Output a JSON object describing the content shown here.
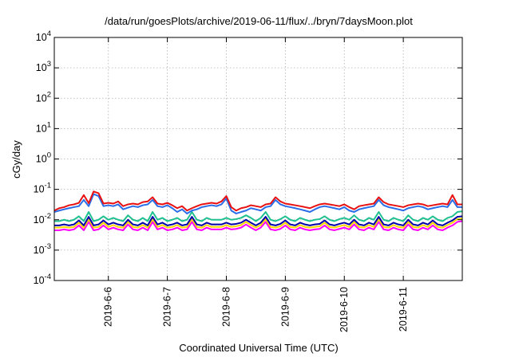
{
  "chart_data": {
    "type": "line",
    "title": "/data/run/goesPlots/archive/2019-06-11/flux/../bryn/7daysMoon.plot",
    "xlabel": "Coordinated Universal Time (UTC)",
    "ylabel": "cGy/day",
    "yscale": "log",
    "ylim": [
      0.0001,
      10000
    ],
    "xlim": [
      "2019-06-05T02:00",
      "2019-06-12T00:00"
    ],
    "grid": true,
    "legend": "none",
    "x_ticks": [
      {
        "label": "2019-6-6",
        "at": "2019-06-06T00:00"
      },
      {
        "label": "2019-6-7",
        "at": "2019-06-07T00:00"
      },
      {
        "label": "2019-6-8",
        "at": "2019-06-08T00:00"
      },
      {
        "label": "2019-6-9",
        "at": "2019-06-09T00:00"
      },
      {
        "label": "2019-6-10",
        "at": "2019-06-10T00:00"
      },
      {
        "label": "2019-6-11",
        "at": "2019-06-11T00:00"
      }
    ],
    "y_ticks": [
      {
        "base": "10",
        "exp": "-4"
      },
      {
        "base": "10",
        "exp": "-3"
      },
      {
        "base": "10",
        "exp": "-2"
      },
      {
        "base": "10",
        "exp": "-1"
      },
      {
        "base": "10",
        "exp": "0"
      },
      {
        "base": "10",
        "exp": "1"
      },
      {
        "base": "10",
        "exp": "2"
      },
      {
        "base": "10",
        "exp": "3"
      },
      {
        "base": "10",
        "exp": "4"
      }
    ],
    "x": [
      "2019-06-05T02:00",
      "2019-06-05T04:00",
      "2019-06-05T06:00",
      "2019-06-05T08:00",
      "2019-06-05T10:00",
      "2019-06-05T12:00",
      "2019-06-05T14:00",
      "2019-06-05T16:00",
      "2019-06-05T18:00",
      "2019-06-05T20:00",
      "2019-06-05T22:00",
      "2019-06-06T00:00",
      "2019-06-06T02:00",
      "2019-06-06T04:00",
      "2019-06-06T06:00",
      "2019-06-06T08:00",
      "2019-06-06T10:00",
      "2019-06-06T12:00",
      "2019-06-06T14:00",
      "2019-06-06T16:00",
      "2019-06-06T18:00",
      "2019-06-06T20:00",
      "2019-06-06T22:00",
      "2019-06-07T00:00",
      "2019-06-07T02:00",
      "2019-06-07T04:00",
      "2019-06-07T06:00",
      "2019-06-07T08:00",
      "2019-06-07T10:00",
      "2019-06-07T12:00",
      "2019-06-07T14:00",
      "2019-06-07T16:00",
      "2019-06-07T18:00",
      "2019-06-07T20:00",
      "2019-06-07T22:00",
      "2019-06-08T00:00",
      "2019-06-08T02:00",
      "2019-06-08T04:00",
      "2019-06-08T06:00",
      "2019-06-08T08:00",
      "2019-06-08T10:00",
      "2019-06-08T12:00",
      "2019-06-08T14:00",
      "2019-06-08T16:00",
      "2019-06-08T18:00",
      "2019-06-08T20:00",
      "2019-06-08T22:00",
      "2019-06-09T00:00",
      "2019-06-09T02:00",
      "2019-06-09T04:00",
      "2019-06-09T06:00",
      "2019-06-09T08:00",
      "2019-06-09T10:00",
      "2019-06-09T12:00",
      "2019-06-09T14:00",
      "2019-06-09T16:00",
      "2019-06-09T18:00",
      "2019-06-09T20:00",
      "2019-06-09T22:00",
      "2019-06-10T00:00",
      "2019-06-10T02:00",
      "2019-06-10T04:00",
      "2019-06-10T06:00",
      "2019-06-10T08:00",
      "2019-06-10T10:00",
      "2019-06-10T12:00",
      "2019-06-10T14:00",
      "2019-06-10T16:00",
      "2019-06-10T18:00",
      "2019-06-10T20:00",
      "2019-06-10T22:00",
      "2019-06-11T00:00",
      "2019-06-11T02:00",
      "2019-06-11T04:00",
      "2019-06-11T06:00",
      "2019-06-11T08:00",
      "2019-06-11T10:00",
      "2019-06-11T12:00",
      "2019-06-11T14:00",
      "2019-06-11T16:00",
      "2019-06-11T18:00",
      "2019-06-11T20:00",
      "2019-06-11T22:00",
      "2019-06-12T00:00"
    ],
    "series": [
      {
        "color": "#ff00ff",
        "values": [
          0.0045,
          0.0045,
          0.0048,
          0.0045,
          0.0048,
          0.0065,
          0.0045,
          0.0085,
          0.0045,
          0.0048,
          0.0065,
          0.0048,
          0.0055,
          0.0048,
          0.0045,
          0.007,
          0.0048,
          0.0045,
          0.0055,
          0.0045,
          0.0085,
          0.0048,
          0.0055,
          0.0045,
          0.0048,
          0.0055,
          0.0045,
          0.0048,
          0.0085,
          0.0048,
          0.0045,
          0.0055,
          0.0048,
          0.0048,
          0.0048,
          0.0055,
          0.0048,
          0.005,
          0.0055,
          0.007,
          0.0055,
          0.0045,
          0.0055,
          0.0085,
          0.0048,
          0.0045,
          0.005,
          0.0065,
          0.0048,
          0.0045,
          0.0055,
          0.0048,
          0.0045,
          0.0048,
          0.005,
          0.0065,
          0.0048,
          0.0045,
          0.005,
          0.0055,
          0.0048,
          0.007,
          0.0048,
          0.0045,
          0.0055,
          0.0048,
          0.0085,
          0.0048,
          0.0045,
          0.0055,
          0.0048,
          0.0045,
          0.007,
          0.0048,
          0.0045,
          0.0055,
          0.0048,
          0.0065,
          0.0048,
          0.0045,
          0.0055,
          0.0065,
          0.0085,
          0.009
        ]
      },
      {
        "color": "#ffd700",
        "values": [
          0.0055,
          0.0055,
          0.0058,
          0.0055,
          0.0058,
          0.008,
          0.0055,
          0.0105,
          0.0055,
          0.0058,
          0.008,
          0.0058,
          0.0067,
          0.0058,
          0.0055,
          0.0085,
          0.0058,
          0.0055,
          0.0067,
          0.0055,
          0.0105,
          0.0058,
          0.0067,
          0.0055,
          0.0058,
          0.0067,
          0.0055,
          0.0058,
          0.0105,
          0.0058,
          0.0055,
          0.0067,
          0.0058,
          0.0058,
          0.0058,
          0.0067,
          0.0058,
          0.0061,
          0.0067,
          0.0085,
          0.0067,
          0.0055,
          0.0067,
          0.0105,
          0.0058,
          0.0055,
          0.0061,
          0.008,
          0.0058,
          0.0055,
          0.0067,
          0.0058,
          0.0055,
          0.0058,
          0.0061,
          0.008,
          0.0058,
          0.0055,
          0.0061,
          0.0067,
          0.0058,
          0.0085,
          0.0058,
          0.0055,
          0.0067,
          0.0058,
          0.0105,
          0.0058,
          0.0055,
          0.0067,
          0.0058,
          0.0055,
          0.0085,
          0.0058,
          0.0055,
          0.0067,
          0.0058,
          0.008,
          0.0058,
          0.0055,
          0.0067,
          0.008,
          0.0105,
          0.011
        ]
      },
      {
        "color": "#0000aa",
        "values": [
          0.0065,
          0.0065,
          0.007,
          0.0065,
          0.007,
          0.0095,
          0.0065,
          0.0125,
          0.0065,
          0.007,
          0.0095,
          0.007,
          0.008,
          0.007,
          0.0065,
          0.01,
          0.007,
          0.0065,
          0.008,
          0.0065,
          0.0125,
          0.007,
          0.008,
          0.0065,
          0.007,
          0.008,
          0.0065,
          0.007,
          0.0125,
          0.007,
          0.0065,
          0.008,
          0.007,
          0.007,
          0.007,
          0.008,
          0.007,
          0.0073,
          0.008,
          0.01,
          0.008,
          0.0065,
          0.008,
          0.0125,
          0.007,
          0.0065,
          0.0073,
          0.0095,
          0.007,
          0.0065,
          0.008,
          0.007,
          0.0065,
          0.007,
          0.0073,
          0.0095,
          0.007,
          0.0065,
          0.0073,
          0.008,
          0.007,
          0.01,
          0.007,
          0.0065,
          0.008,
          0.007,
          0.0125,
          0.007,
          0.0065,
          0.008,
          0.007,
          0.0065,
          0.01,
          0.007,
          0.0065,
          0.008,
          0.007,
          0.0095,
          0.007,
          0.0065,
          0.008,
          0.0095,
          0.0125,
          0.013
        ]
      },
      {
        "color": "#20c090",
        "values": [
          0.009,
          0.009,
          0.01,
          0.009,
          0.01,
          0.013,
          0.009,
          0.018,
          0.009,
          0.01,
          0.013,
          0.01,
          0.0115,
          0.01,
          0.009,
          0.014,
          0.01,
          0.009,
          0.0115,
          0.009,
          0.018,
          0.01,
          0.0115,
          0.009,
          0.01,
          0.0115,
          0.009,
          0.01,
          0.018,
          0.01,
          0.009,
          0.0115,
          0.01,
          0.01,
          0.01,
          0.0115,
          0.01,
          0.0105,
          0.0115,
          0.014,
          0.0115,
          0.009,
          0.0115,
          0.018,
          0.01,
          0.009,
          0.0105,
          0.013,
          0.01,
          0.009,
          0.0115,
          0.01,
          0.009,
          0.01,
          0.0105,
          0.013,
          0.01,
          0.009,
          0.0105,
          0.0115,
          0.01,
          0.014,
          0.01,
          0.009,
          0.0115,
          0.01,
          0.018,
          0.01,
          0.009,
          0.0115,
          0.01,
          0.009,
          0.014,
          0.01,
          0.009,
          0.0115,
          0.01,
          0.013,
          0.01,
          0.009,
          0.0115,
          0.013,
          0.018,
          0.019
        ]
      },
      {
        "color": "#2a6de8",
        "values": [
          0.018,
          0.02,
          0.022,
          0.024,
          0.026,
          0.028,
          0.045,
          0.028,
          0.07,
          0.06,
          0.028,
          0.03,
          0.028,
          0.032,
          0.022,
          0.025,
          0.028,
          0.026,
          0.03,
          0.032,
          0.045,
          0.028,
          0.026,
          0.03,
          0.024,
          0.018,
          0.022,
          0.016,
          0.02,
          0.022,
          0.026,
          0.028,
          0.03,
          0.028,
          0.032,
          0.05,
          0.02,
          0.016,
          0.018,
          0.02,
          0.024,
          0.022,
          0.02,
          0.026,
          0.028,
          0.045,
          0.032,
          0.028,
          0.026,
          0.024,
          0.022,
          0.02,
          0.018,
          0.022,
          0.026,
          0.028,
          0.026,
          0.024,
          0.022,
          0.026,
          0.02,
          0.018,
          0.022,
          0.024,
          0.026,
          0.028,
          0.045,
          0.03,
          0.026,
          0.024,
          0.022,
          0.02,
          0.024,
          0.026,
          0.028,
          0.026,
          0.022,
          0.024,
          0.026,
          0.028,
          0.026,
          0.045,
          0.026,
          0.026
        ]
      },
      {
        "color": "#e81010",
        "values": [
          0.02,
          0.024,
          0.026,
          0.03,
          0.032,
          0.036,
          0.065,
          0.035,
          0.085,
          0.075,
          0.034,
          0.036,
          0.034,
          0.04,
          0.028,
          0.032,
          0.034,
          0.032,
          0.038,
          0.04,
          0.055,
          0.034,
          0.032,
          0.036,
          0.03,
          0.024,
          0.028,
          0.02,
          0.024,
          0.028,
          0.032,
          0.034,
          0.036,
          0.034,
          0.04,
          0.06,
          0.026,
          0.02,
          0.024,
          0.026,
          0.03,
          0.028,
          0.026,
          0.032,
          0.034,
          0.055,
          0.04,
          0.034,
          0.032,
          0.03,
          0.028,
          0.026,
          0.024,
          0.028,
          0.032,
          0.034,
          0.032,
          0.03,
          0.028,
          0.032,
          0.026,
          0.022,
          0.028,
          0.03,
          0.032,
          0.034,
          0.055,
          0.038,
          0.032,
          0.03,
          0.028,
          0.026,
          0.03,
          0.032,
          0.034,
          0.032,
          0.028,
          0.03,
          0.032,
          0.034,
          0.032,
          0.065,
          0.032,
          0.032
        ]
      }
    ]
  }
}
